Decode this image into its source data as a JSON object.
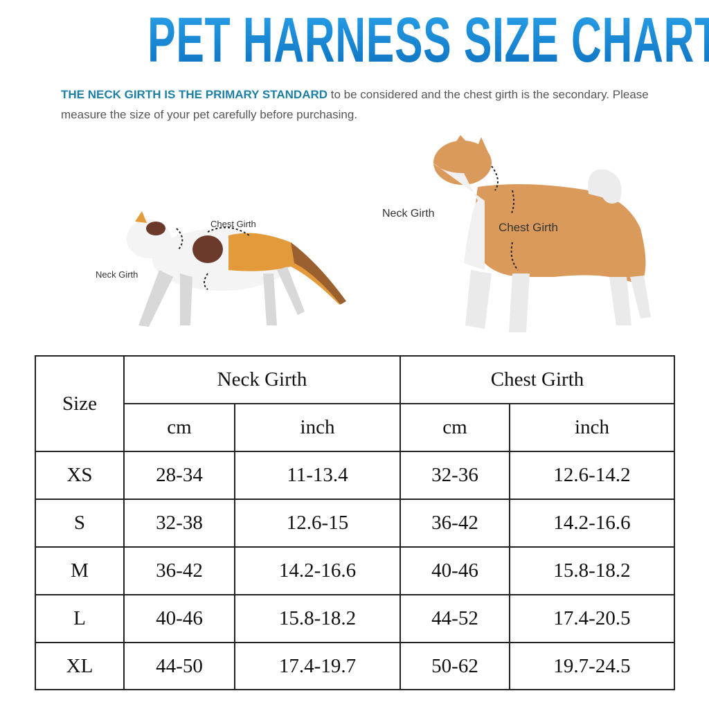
{
  "title": "PET HARNESS SIZE CHART",
  "intro": {
    "highlight": "THE NECK GIRTH IS THE PRIMARY STANDARD",
    "rest": " to be considered and the chest girth is the secondary. Please measure the size of your pet carefully before purchasing."
  },
  "illustrations": {
    "cat": {
      "neck_label": "Neck Girth",
      "chest_label": "Chest Girth"
    },
    "dog": {
      "neck_label": "Neck Girth",
      "chest_label": "Chest Girth"
    }
  },
  "colors": {
    "title": "#1588d4",
    "highlight": "#1e7fa6",
    "dog_fur": "#d99a5b",
    "cat_orange": "#e39a3b",
    "cat_brown": "#6b3a2a"
  },
  "table": {
    "size_header": "Size",
    "neck_header": "Neck Girth",
    "chest_header": "Chest Girth",
    "units": [
      "cm",
      "inch",
      "cm",
      "inch"
    ],
    "rows": [
      {
        "size": "XS",
        "neck_cm": "28-34",
        "neck_in": "11-13.4",
        "chest_cm": "32-36",
        "chest_in": "12.6-14.2"
      },
      {
        "size": "S",
        "neck_cm": "32-38",
        "neck_in": "12.6-15",
        "chest_cm": "36-42",
        "chest_in": "14.2-16.6"
      },
      {
        "size": "M",
        "neck_cm": "36-42",
        "neck_in": "14.2-16.6",
        "chest_cm": "40-46",
        "chest_in": "15.8-18.2"
      },
      {
        "size": "L",
        "neck_cm": "40-46",
        "neck_in": "15.8-18.2",
        "chest_cm": "44-52",
        "chest_in": "17.4-20.5"
      },
      {
        "size": "XL",
        "neck_cm": "44-50",
        "neck_in": "17.4-19.7",
        "chest_cm": "50-62",
        "chest_in": "19.7-24.5"
      }
    ]
  }
}
